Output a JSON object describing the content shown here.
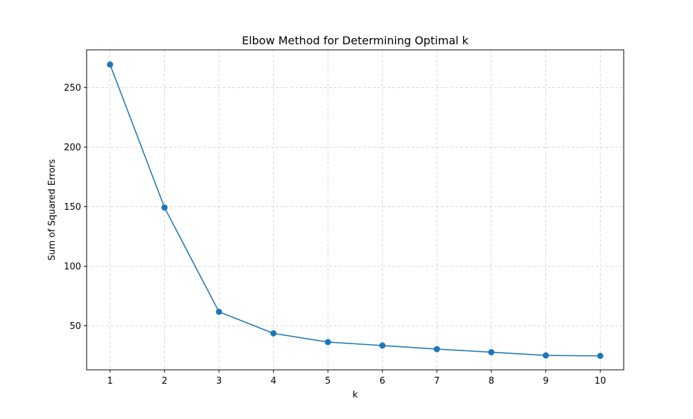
{
  "chart_data": {
    "type": "line",
    "title": "Elbow Method for Determining Optimal k",
    "xlabel": "k",
    "ylabel": "Sum of Squared Errors",
    "x": [
      1,
      2,
      3,
      4,
      5,
      6,
      7,
      8,
      9,
      10
    ],
    "series": [
      {
        "values": [
          269.3,
          149.2,
          61.7,
          43.6,
          36.3,
          33.4,
          30.4,
          27.8,
          25.1,
          24.7
        ]
      }
    ],
    "xlim": [
      0.57,
      10.43
    ],
    "ylim": [
      13.0,
      281.6
    ],
    "x_ticks": [
      1,
      2,
      3,
      4,
      5,
      6,
      7,
      8,
      9,
      10
    ],
    "y_ticks": [
      50,
      100,
      150,
      200,
      250
    ],
    "grid": true,
    "grid_style": "dashed",
    "markers": "circle",
    "colors": {
      "line": "#1f77b4",
      "grid": "#cccccc",
      "axis": "#000000"
    }
  }
}
